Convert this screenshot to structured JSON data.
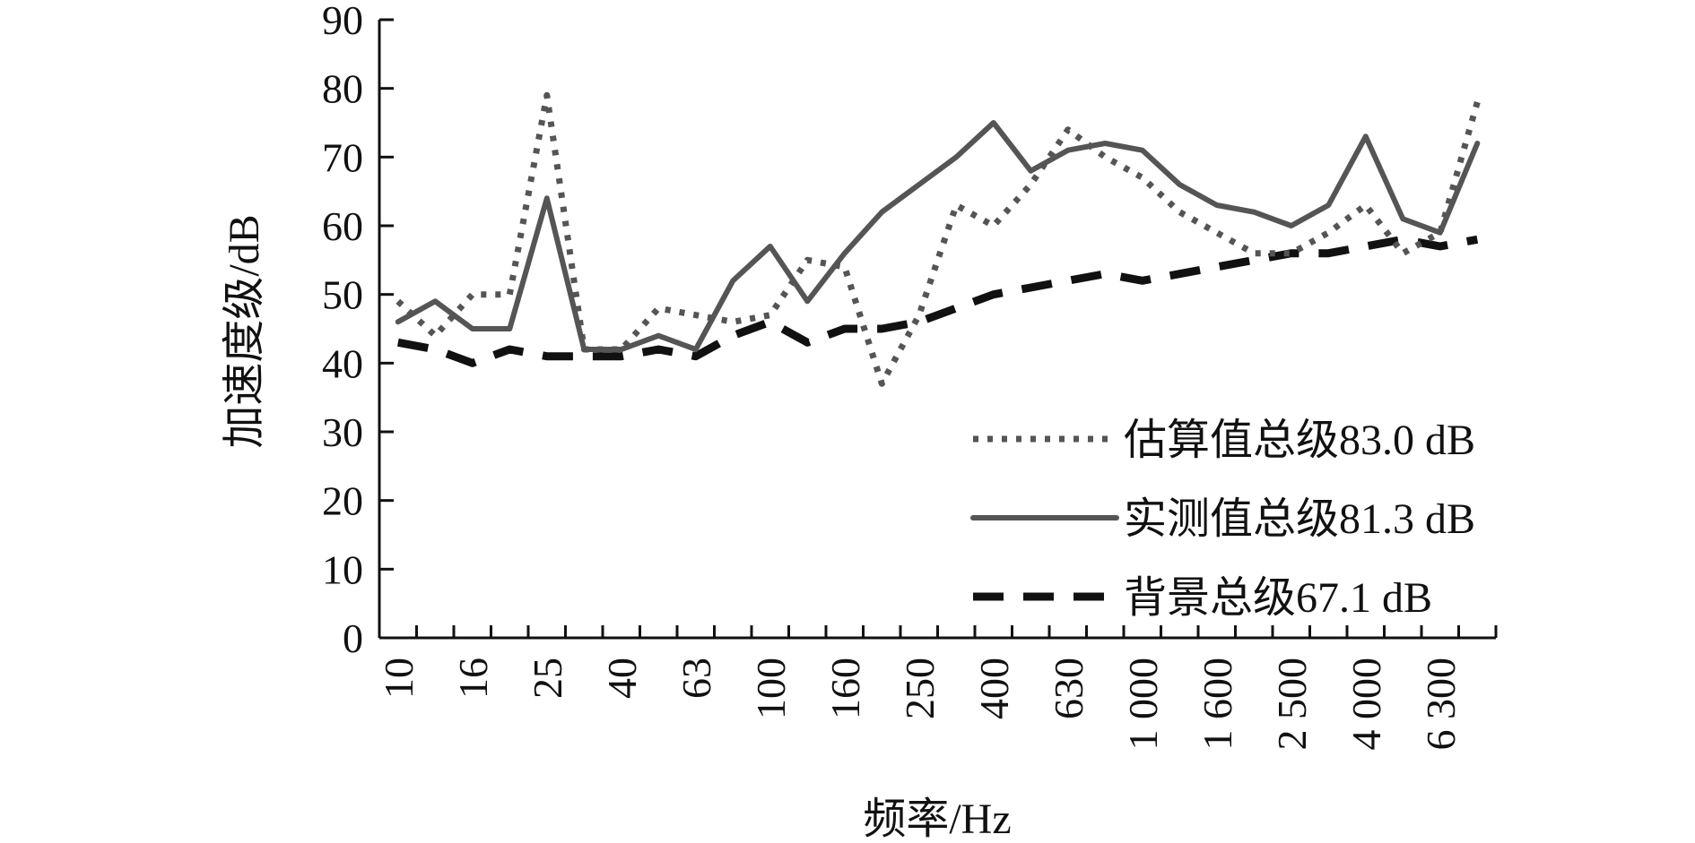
{
  "chart_data": {
    "type": "line",
    "title": "",
    "xlabel": "频率/Hz",
    "ylabel": "加速度级/dB",
    "ylim": [
      0,
      90
    ],
    "yticks": [
      "0",
      "10",
      "20",
      "30",
      "40",
      "50",
      "60",
      "70",
      "80",
      "90"
    ],
    "x_tick_labels": [
      "10",
      "16",
      "25",
      "40",
      "63",
      "100",
      "160",
      "250",
      "400",
      "630",
      "1 000",
      "1 600",
      "2 500",
      "4 000",
      "6 300"
    ],
    "x_tick_every": 2,
    "categories": [
      "10",
      "12.5",
      "16",
      "20",
      "25",
      "31.5",
      "40",
      "50",
      "63",
      "80",
      "100",
      "125",
      "160",
      "200",
      "250",
      "315",
      "400",
      "500",
      "630",
      "800",
      "1 000",
      "1 250",
      "1 600",
      "2 000",
      "2 500",
      "3 150",
      "4 000",
      "5 000",
      "6 300",
      "8 000"
    ],
    "grid": false,
    "legend_position": "bottom-right",
    "series": [
      {
        "name": "估算值总级83.0 dB",
        "style": "dotted",
        "color": "#555555",
        "values": [
          49,
          44,
          50,
          50,
          79,
          42,
          42,
          48,
          47,
          46,
          47,
          55,
          54,
          37,
          47,
          63,
          60,
          66,
          74,
          70,
          67,
          62,
          59,
          56,
          56,
          59,
          63,
          56,
          59,
          78
        ]
      },
      {
        "name": "实测值总级81.3 dB",
        "style": "solid",
        "color": "#555555",
        "values": [
          46,
          49,
          45,
          45,
          64,
          42,
          42,
          44,
          42,
          52,
          57,
          49,
          56,
          62,
          66,
          70,
          75,
          68,
          71,
          72,
          71,
          66,
          63,
          62,
          60,
          63,
          73,
          61,
          59,
          72
        ]
      },
      {
        "name": "背景总级67.1 dB",
        "style": "dashed",
        "color": "#111111",
        "values": [
          43,
          42,
          40,
          42,
          41,
          41,
          41,
          42,
          41,
          44,
          46,
          43,
          45,
          45,
          46,
          48,
          50,
          51,
          52,
          53,
          52,
          53,
          54,
          55,
          56,
          56,
          57,
          58,
          57,
          58
        ]
      }
    ]
  }
}
